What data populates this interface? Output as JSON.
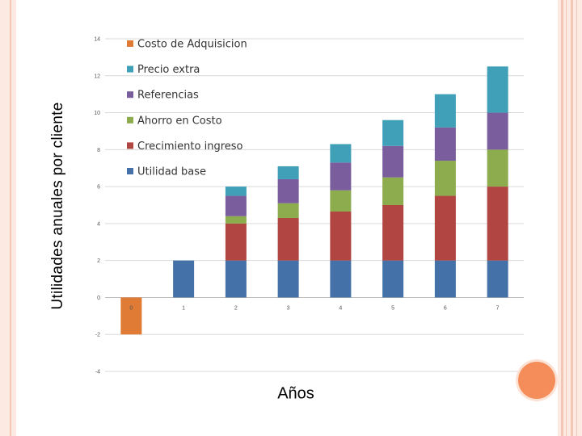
{
  "chart_data": {
    "type": "bar",
    "stacked": true,
    "title": "",
    "xlabel": "Años",
    "ylabel": "Utilidades  anuales por cliente",
    "categories": [
      "0",
      "1",
      "2",
      "3",
      "4",
      "5",
      "6",
      "7"
    ],
    "ylim": [
      -4,
      14
    ],
    "yticks": [
      "-4",
      "-2",
      "0",
      "2",
      "4",
      "6",
      "8",
      "10",
      "12",
      "14"
    ],
    "grid": true,
    "legend": "top-left inside plot",
    "series": [
      {
        "name": "Costo de Adquisicion",
        "color": "#e07b35",
        "values": [
          -2,
          0,
          0,
          0,
          0,
          0,
          0,
          0
        ]
      },
      {
        "name": "Utilidad base",
        "color": "#4472a8",
        "values": [
          0,
          2,
          2,
          2,
          2,
          2,
          2,
          2
        ]
      },
      {
        "name": "Crecimiento ingreso",
        "color": "#b04542",
        "values": [
          0,
          0,
          2,
          2.3,
          2.65,
          3,
          3.5,
          4
        ]
      },
      {
        "name": "Ahorro en Costo",
        "color": "#8cac4e",
        "values": [
          0,
          0,
          0.4,
          0.8,
          1.15,
          1.5,
          1.9,
          2
        ]
      },
      {
        "name": "Referencias",
        "color": "#7a5d9c",
        "values": [
          0,
          0,
          1.1,
          1.3,
          1.5,
          1.7,
          1.8,
          2
        ]
      },
      {
        "name": "Precio extra",
        "color": "#3fa0b8",
        "values": [
          0,
          0,
          0.5,
          0.7,
          1.0,
          1.4,
          1.8,
          2.5
        ]
      }
    ],
    "legend_order": [
      "Costo de Adquisicion",
      "Precio extra",
      "Referencias",
      "Ahorro en Costo",
      "Crecimiento ingreso",
      "Utilidad base"
    ]
  }
}
